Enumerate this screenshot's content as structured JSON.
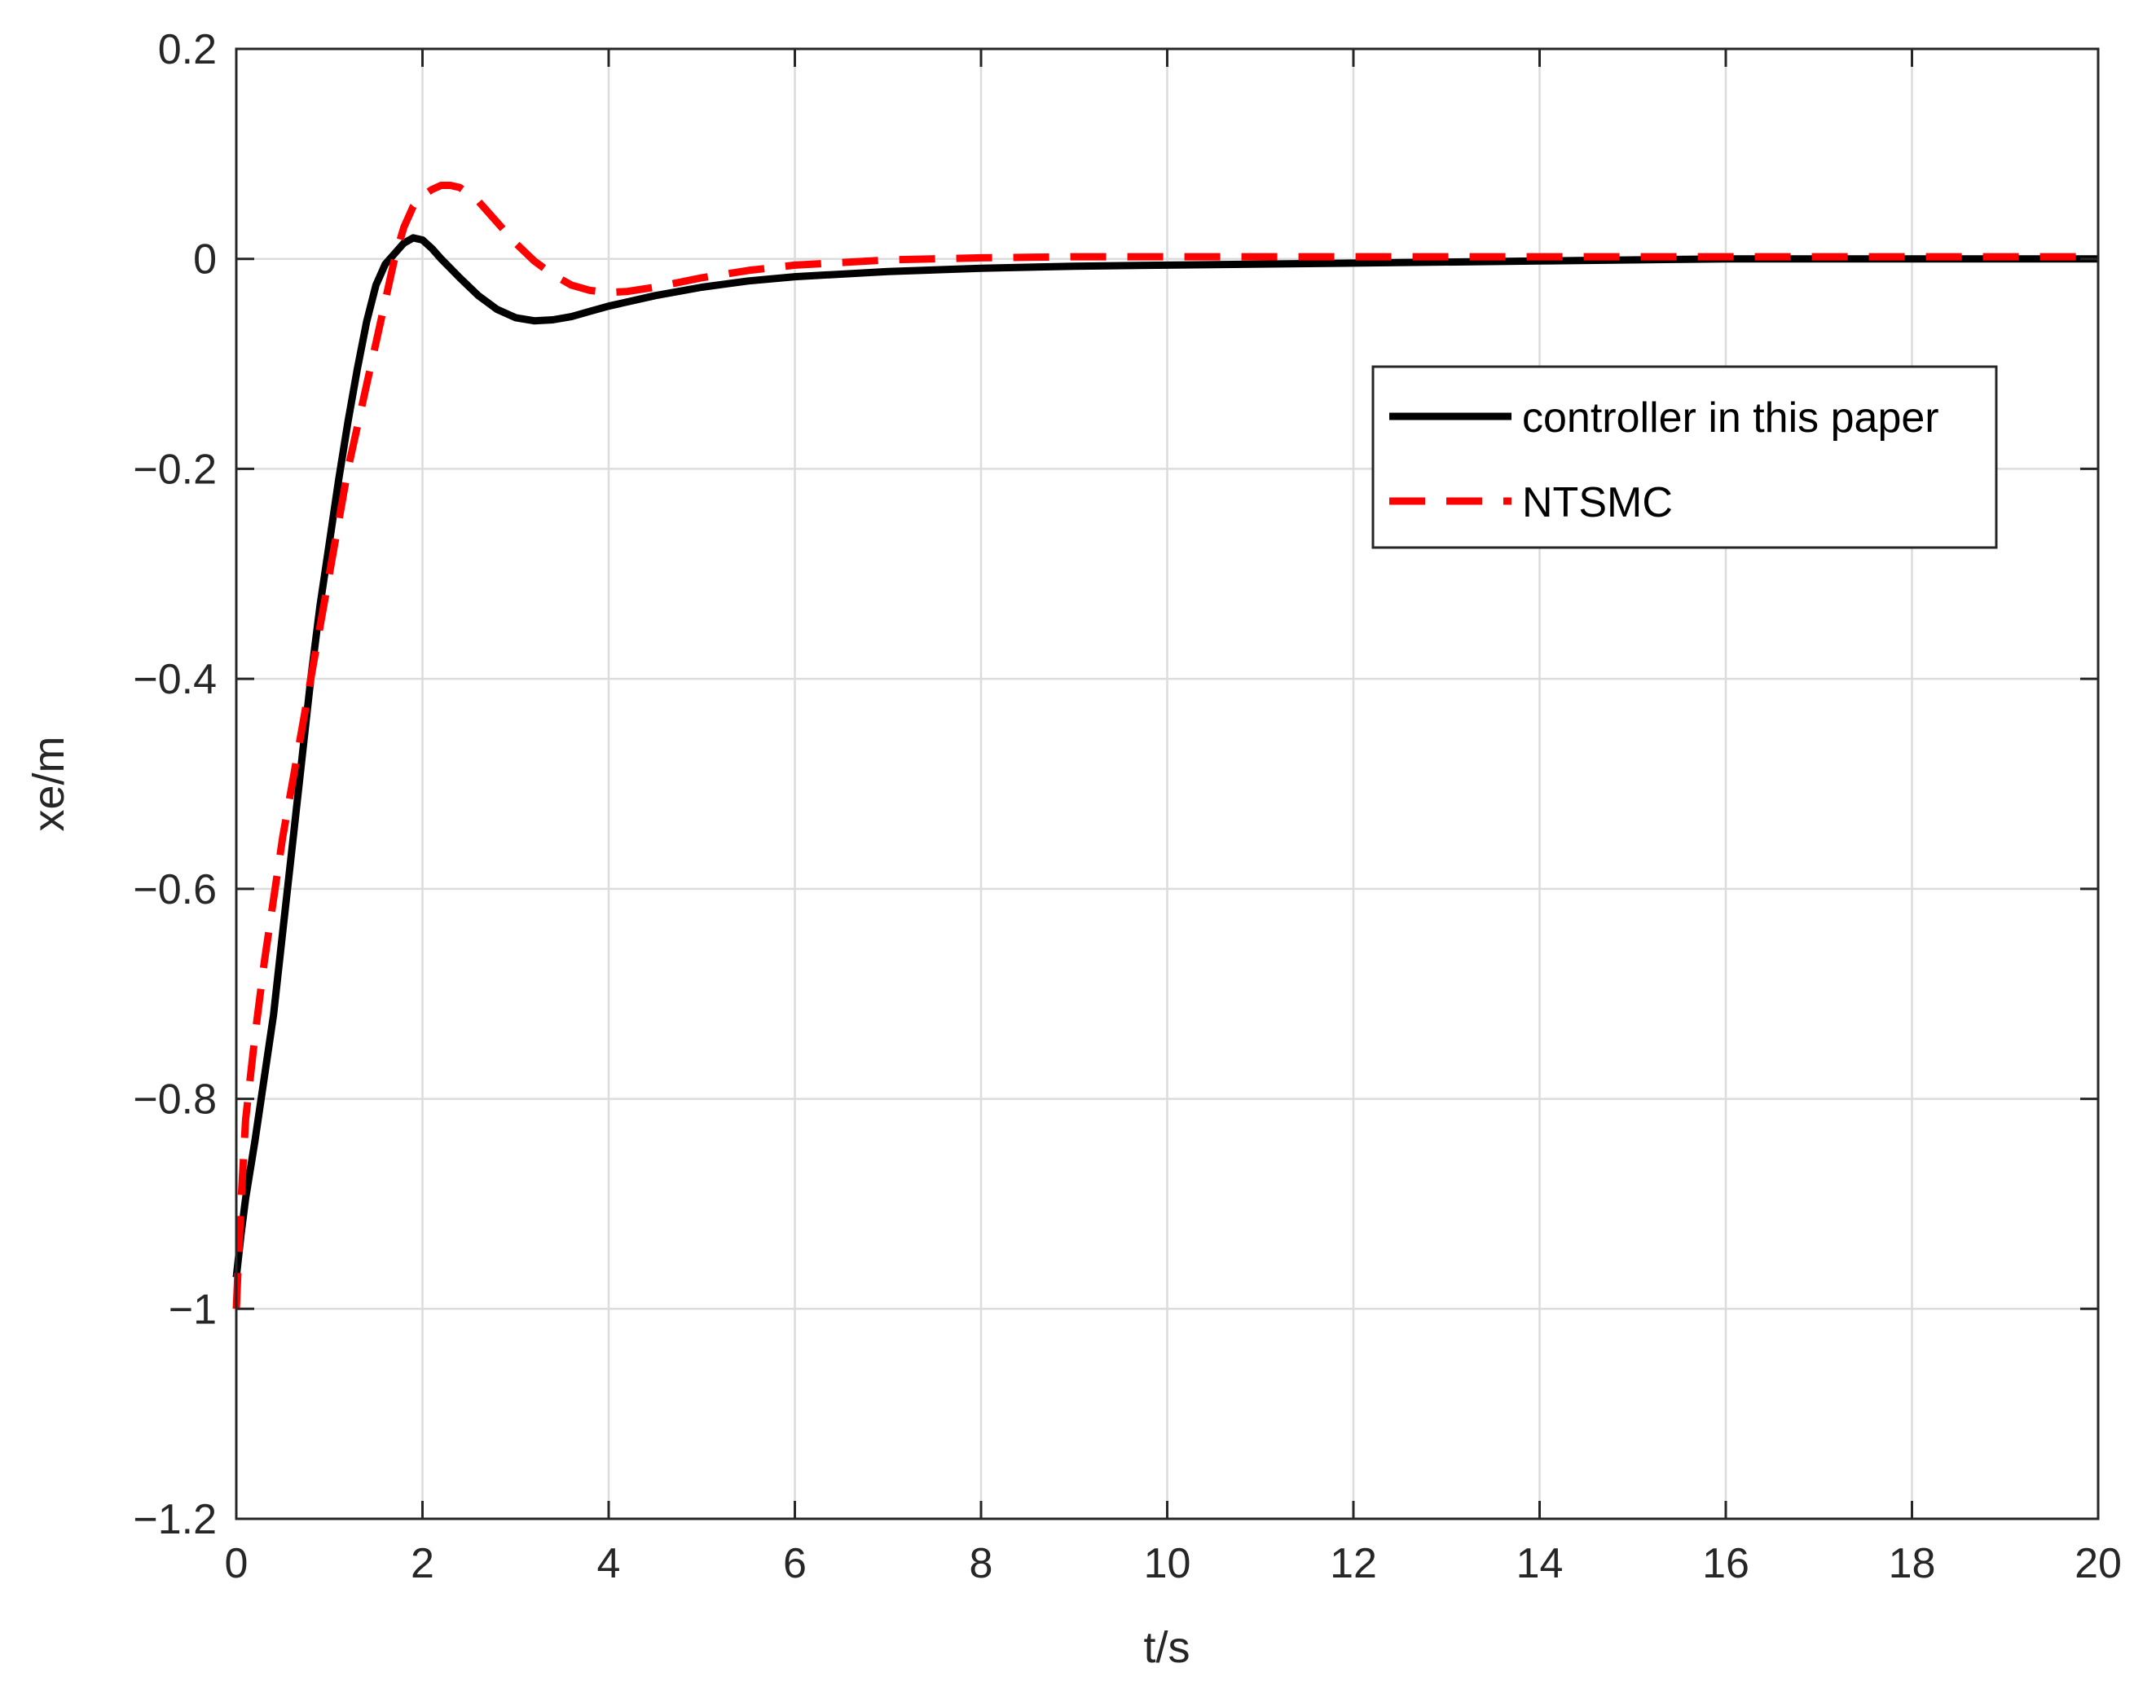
{
  "chart_data": {
    "type": "line",
    "xlabel": "t/s",
    "ylabel": "xe/m",
    "xlim": [
      0,
      20
    ],
    "ylim": [
      -1.2,
      0.2
    ],
    "xticks": [
      0,
      2,
      4,
      6,
      8,
      10,
      12,
      14,
      16,
      18,
      20
    ],
    "yticks": [
      0.2,
      0,
      -0.2,
      -0.4,
      -0.6,
      -0.8,
      -1,
      -1.2
    ],
    "xtick_labels": [
      "0",
      "2",
      "4",
      "6",
      "8",
      "10",
      "12",
      "14",
      "16",
      "18",
      "20"
    ],
    "ytick_labels": [
      "0.2",
      "0",
      "−0.2",
      "−0.4",
      "−0.6",
      "−0.8",
      "−1",
      "−1.2"
    ],
    "grid": true,
    "legend_position": "upper-right",
    "series": [
      {
        "name": "controller in this paper",
        "color": "#000000",
        "style": "solid",
        "x": [
          0,
          0.05,
          0.1,
          0.2,
          0.3,
          0.4,
          0.5,
          0.6,
          0.7,
          0.8,
          0.9,
          1.0,
          1.1,
          1.2,
          1.3,
          1.4,
          1.5,
          1.6,
          1.7,
          1.8,
          1.9,
          2.0,
          2.1,
          2.2,
          2.4,
          2.6,
          2.8,
          3.0,
          3.2,
          3.4,
          3.6,
          3.8,
          4.0,
          4.5,
          5.0,
          5.5,
          6.0,
          7.0,
          8.0,
          9.0,
          10.0,
          12.0,
          14.0,
          16.0,
          18.0,
          20.0
        ],
        "y": [
          -0.97,
          -0.93,
          -0.895,
          -0.84,
          -0.78,
          -0.72,
          -0.64,
          -0.56,
          -0.48,
          -0.4,
          -0.33,
          -0.27,
          -0.21,
          -0.155,
          -0.105,
          -0.06,
          -0.025,
          -0.005,
          0.005,
          0.015,
          0.02,
          0.018,
          0.01,
          0.0,
          -0.018,
          -0.035,
          -0.048,
          -0.056,
          -0.059,
          -0.058,
          -0.055,
          -0.05,
          -0.045,
          -0.035,
          -0.027,
          -0.021,
          -0.017,
          -0.012,
          -0.009,
          -0.007,
          -0.006,
          -0.004,
          -0.002,
          0.0,
          0.0,
          0.0
        ]
      },
      {
        "name": "NTSMC",
        "color": "#ff0000",
        "style": "dashed",
        "x": [
          0,
          0.05,
          0.1,
          0.2,
          0.3,
          0.4,
          0.5,
          0.6,
          0.7,
          0.8,
          0.9,
          1.0,
          1.1,
          1.2,
          1.3,
          1.4,
          1.5,
          1.6,
          1.7,
          1.8,
          1.9,
          2.0,
          2.1,
          2.2,
          2.3,
          2.4,
          2.6,
          2.8,
          3.0,
          3.2,
          3.4,
          3.6,
          3.8,
          4.0,
          4.2,
          4.5,
          5.0,
          5.5,
          6.0,
          7.0,
          8.0,
          9.0,
          10.0,
          12.0,
          14.0,
          16.0,
          18.0,
          20.0
        ],
        "y": [
          -1.0,
          -0.9,
          -0.82,
          -0.74,
          -0.67,
          -0.61,
          -0.55,
          -0.5,
          -0.45,
          -0.4,
          -0.35,
          -0.3,
          -0.25,
          -0.2,
          -0.16,
          -0.12,
          -0.08,
          -0.04,
          0.0,
          0.03,
          0.05,
          0.06,
          0.066,
          0.07,
          0.07,
          0.068,
          0.055,
          0.035,
          0.015,
          -0.002,
          -0.015,
          -0.025,
          -0.03,
          -0.032,
          -0.031,
          -0.027,
          -0.018,
          -0.011,
          -0.006,
          -0.001,
          0.001,
          0.002,
          0.002,
          0.002,
          0.002,
          0.002,
          0.002,
          0.002
        ]
      }
    ]
  }
}
